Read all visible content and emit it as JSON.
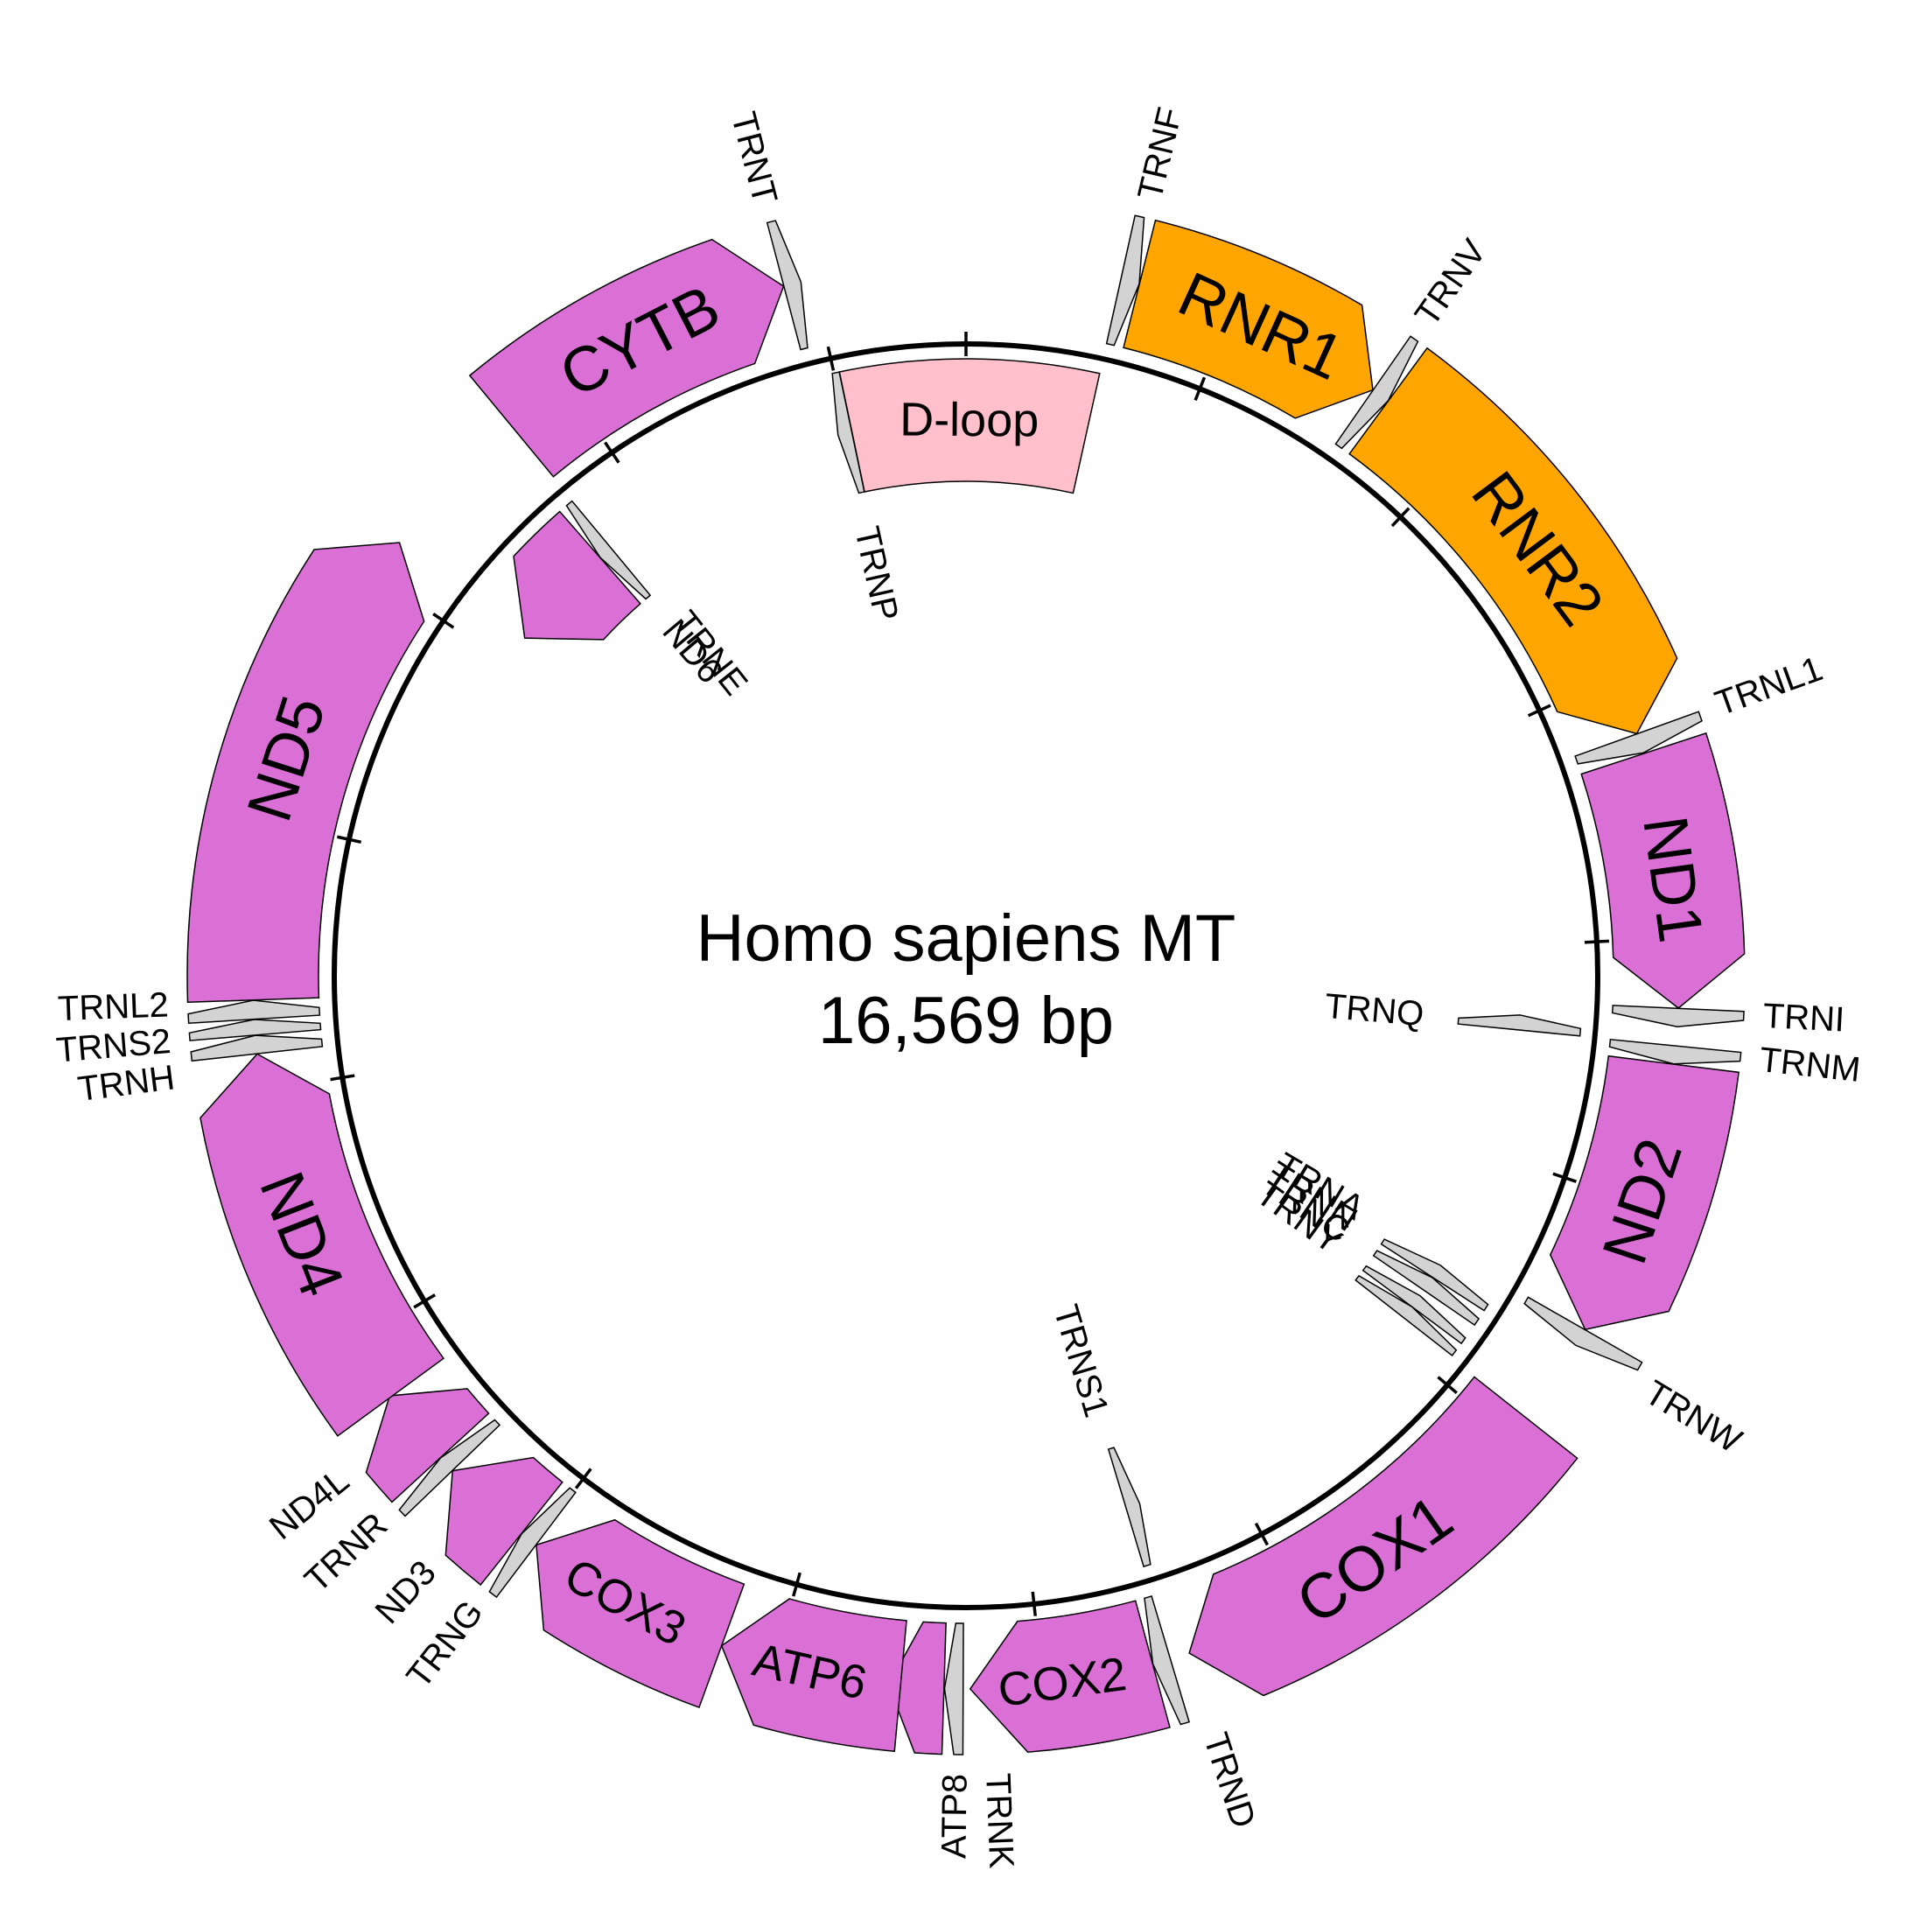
{
  "title": "Homo sapiens MT",
  "subtitle": "16,569 bp",
  "colors": {
    "protein": "#DA70D6",
    "rrna": "#FFA500",
    "trna": "#D3D3D3",
    "dloop": "#FFC0CB",
    "backbone": "#000000"
  },
  "genes": [
    {
      "name": "ND1",
      "kind": "protein",
      "start": 3307,
      "end": 4262,
      "strand": 1
    },
    {
      "name": "ND2",
      "kind": "protein",
      "start": 4470,
      "end": 5511,
      "strand": 1
    },
    {
      "name": "COX1",
      "kind": "protein",
      "start": 5904,
      "end": 7445,
      "strand": 1
    },
    {
      "name": "COX2",
      "kind": "protein",
      "start": 7586,
      "end": 8269,
      "strand": 1
    },
    {
      "name": "ATP6",
      "kind": "protein",
      "start": 8527,
      "end": 9207,
      "strand": 1
    },
    {
      "name": "COX3",
      "kind": "protein",
      "start": 9207,
      "end": 9990,
      "strand": 1
    },
    {
      "name": "ND4",
      "kind": "protein",
      "start": 10760,
      "end": 12137,
      "strand": 1
    },
    {
      "name": "ND5",
      "kind": "protein",
      "start": 12337,
      "end": 14148,
      "strand": 1
    },
    {
      "name": "CYTB",
      "kind": "protein",
      "start": 14747,
      "end": 15887,
      "strand": 1
    },
    {
      "name": "RNR1",
      "kind": "rrna",
      "start": 648,
      "end": 1601,
      "strand": 1
    },
    {
      "name": "RNR2",
      "kind": "rrna",
      "start": 1671,
      "end": 3229,
      "strand": 1
    },
    {
      "name": "D-loop",
      "kind": "dloop",
      "start": 16024,
      "end": 576,
      "strand": -1
    }
  ],
  "small_labels": [
    {
      "name": "ATP8",
      "kind": "protein",
      "start": 8366,
      "end": 8572,
      "strand": 1,
      "label_pos": 8320
    },
    {
      "name": "ND3",
      "kind": "protein",
      "start": 10059,
      "end": 10404,
      "strand": 1,
      "label_pos": 10230
    },
    {
      "name": "ND4L",
      "kind": "protein",
      "start": 10470,
      "end": 10766,
      "strand": 1,
      "label_pos": 10640
    },
    {
      "name": "ND6",
      "kind": "protein",
      "start": 14149,
      "end": 14673,
      "strand": -1,
      "label_pos": 14720
    },
    {
      "name": "TRNF",
      "kind": "trna",
      "start": 577,
      "end": 647,
      "strand": 1,
      "label_pos": 612
    },
    {
      "name": "TRNV",
      "kind": "trna",
      "start": 1602,
      "end": 1670,
      "strand": 1,
      "label_pos": 1610
    },
    {
      "name": "TRNL1",
      "kind": "trna",
      "start": 3230,
      "end": 3304,
      "strand": 1,
      "label_pos": 3230
    },
    {
      "name": "TRNI",
      "kind": "trna",
      "start": 4263,
      "end": 4331,
      "strand": 1,
      "label_pos": 4275
    },
    {
      "name": "TRNQ",
      "kind": "trna",
      "start": 4329,
      "end": 4400,
      "strand": -1,
      "label_pos": 4365
    },
    {
      "name": "TRNM",
      "kind": "trna",
      "start": 4402,
      "end": 4469,
      "strand": 1,
      "label_pos": 4420
    },
    {
      "name": "TRNW",
      "kind": "trna",
      "start": 5512,
      "end": 5579,
      "strand": 1,
      "label_pos": 5580
    },
    {
      "name": "TRNA",
      "kind": "trna",
      "start": 5587,
      "end": 5655,
      "strand": -1,
      "label_pos": 5560
    },
    {
      "name": "TRNN",
      "kind": "trna",
      "start": 5657,
      "end": 5729,
      "strand": -1,
      "label_pos": 5640
    },
    {
      "name": "TRNC",
      "kind": "trna",
      "start": 5761,
      "end": 5826,
      "strand": -1,
      "label_pos": 5720
    },
    {
      "name": "TRNY",
      "kind": "trna",
      "start": 5826,
      "end": 5891,
      "strand": -1,
      "label_pos": 5800
    },
    {
      "name": "TRNS1",
      "kind": "trna",
      "start": 7446,
      "end": 7514,
      "strand": -1,
      "label_pos": 7520
    },
    {
      "name": "TRND",
      "kind": "trna",
      "start": 7518,
      "end": 7585,
      "strand": 1,
      "label_pos": 7450
    },
    {
      "name": "TRNK",
      "kind": "trna",
      "start": 8295,
      "end": 8364,
      "strand": 1,
      "label_pos": 8180
    },
    {
      "name": "TRNG",
      "kind": "trna",
      "start": 9991,
      "end": 10058,
      "strand": 1,
      "label_pos": 10030
    },
    {
      "name": "TRNR",
      "kind": "trna",
      "start": 10405,
      "end": 10469,
      "strand": 1,
      "label_pos": 10450
    },
    {
      "name": "TRNH",
      "kind": "trna",
      "start": 12138,
      "end": 12206,
      "strand": 1,
      "label_pos": 12090
    },
    {
      "name": "TRNS2",
      "kind": "trna",
      "start": 12207,
      "end": 12265,
      "strand": 1,
      "label_pos": 12210
    },
    {
      "name": "TRNL2",
      "kind": "trna",
      "start": 12266,
      "end": 12336,
      "strand": 1,
      "label_pos": 12330
    },
    {
      "name": "TRNE",
      "kind": "trna",
      "start": 14674,
      "end": 14742,
      "strand": -1,
      "label_pos": 14800
    },
    {
      "name": "TRNT",
      "kind": "trna",
      "start": 15888,
      "end": 15953,
      "strand": 1,
      "label_pos": 15900
    },
    {
      "name": "TRNP",
      "kind": "trna",
      "start": 15956,
      "end": 16023,
      "strand": -1,
      "label_pos": 15990
    }
  ]
}
